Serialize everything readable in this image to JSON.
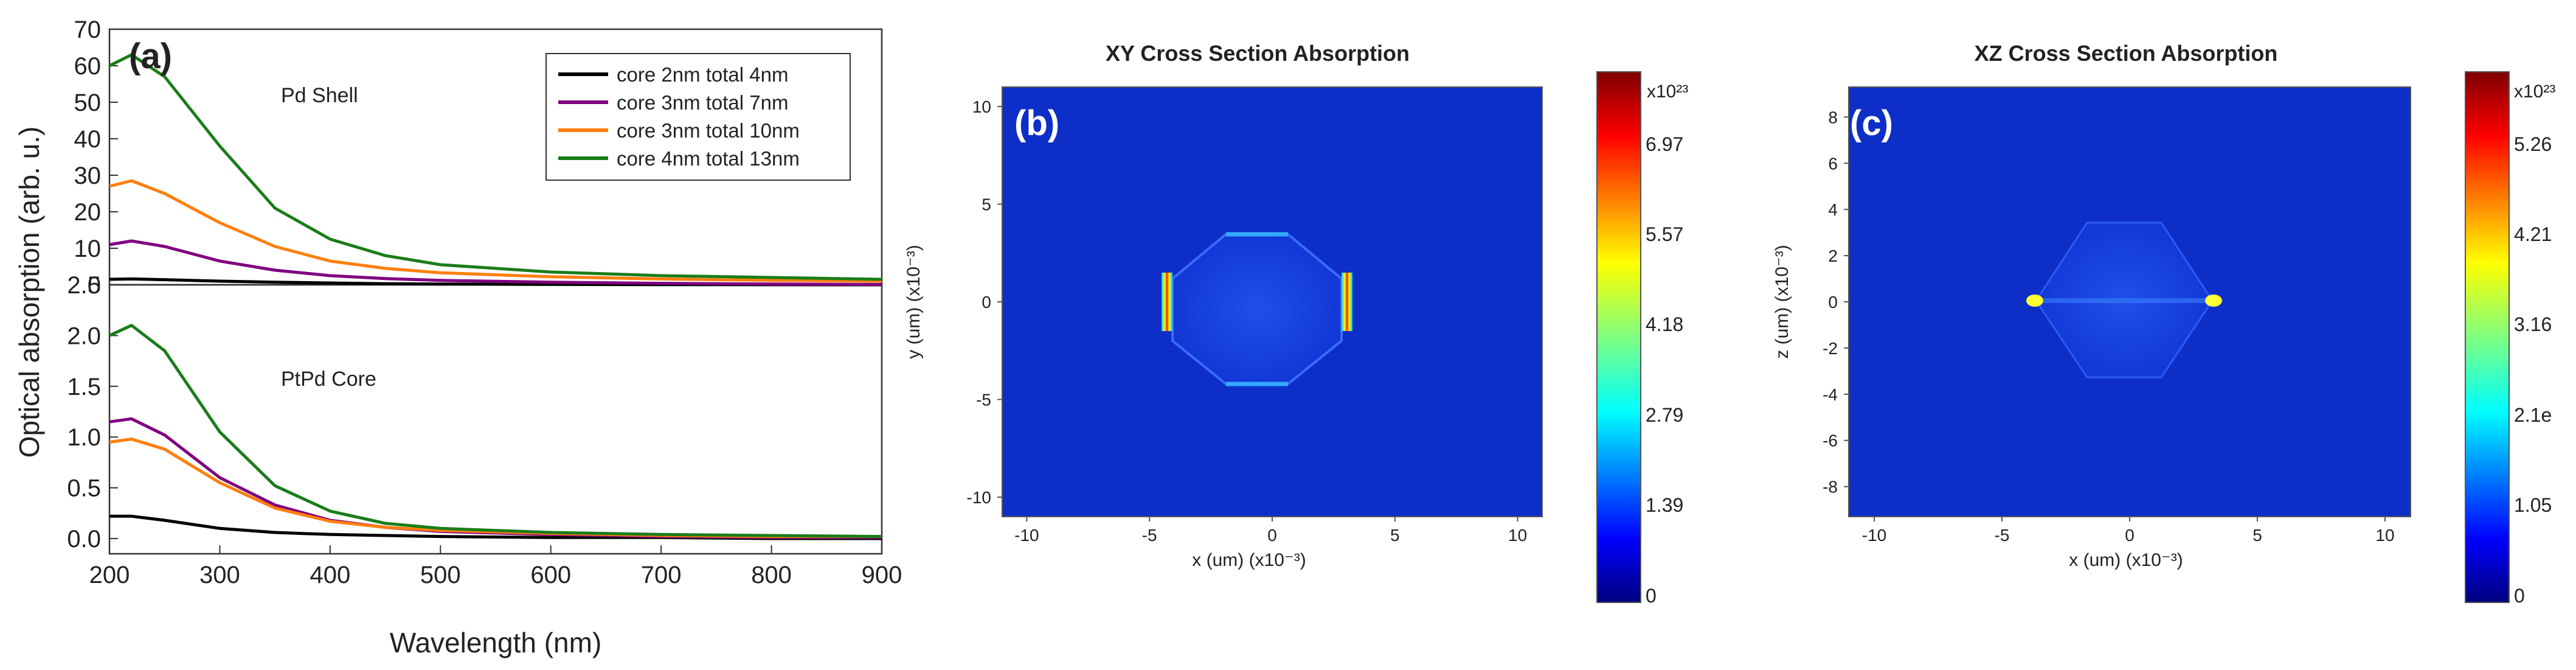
{
  "panel_a": {
    "label": "(a)",
    "xlabel": "Wavelength (nm)",
    "ylabel": "Optical absorption (arb. u.)",
    "x_ticks": [
      200,
      300,
      400,
      500,
      600,
      700,
      800,
      900
    ],
    "legend": [
      "core 2nm total 4nm",
      "core 3nm total 7nm",
      "core 3nm total 10nm",
      "core 4nm total 13nm"
    ],
    "colors": [
      "#000000",
      "#800080",
      "#ff7f0e",
      "#1a7d1a"
    ]
  },
  "panel_b": {
    "label": "(b)",
    "title": "XY Cross Section Absorption",
    "xlabel": "x (um) (x10⁻³)",
    "ylabel": "y (um) (x10⁻³)",
    "x_ticks": [
      -10,
      -5,
      0,
      5,
      10
    ],
    "y_ticks": [
      10,
      5,
      0,
      -5,
      -10
    ],
    "colorbar_exponent": "x10²³",
    "colorbar_ticks": [
      "6.97",
      "5.57",
      "4.18",
      "2.79",
      "1.39",
      "0"
    ]
  },
  "panel_c": {
    "label": "(c)",
    "title": "XZ Cross Section Absorption",
    "xlabel": "x (um) (x10⁻³)",
    "ylabel": "z (um) (x10⁻³)",
    "x_ticks": [
      -10,
      -5,
      0,
      5,
      10
    ],
    "y_ticks": [
      8,
      6,
      4,
      2,
      0,
      -2,
      -4,
      -6,
      -8
    ],
    "colorbar_exponent": "x10²³",
    "colorbar_ticks": [
      "5.26",
      "4.21",
      "3.16",
      "2.1e",
      "1.05",
      "0"
    ]
  },
  "chart_data": [
    {
      "type": "line",
      "title": "Pd Shell",
      "xlabel": "Wavelength (nm)",
      "ylabel": "Optical absorption (arb. u.)",
      "xlim": [
        200,
        900
      ],
      "ylim": [
        0,
        70
      ],
      "y_ticks": [
        0,
        10,
        20,
        30,
        40,
        50,
        60,
        70
      ],
      "x": [
        200,
        220,
        250,
        300,
        350,
        400,
        450,
        500,
        600,
        700,
        800,
        900
      ],
      "series": [
        {
          "name": "core 2nm total 4nm",
          "values": [
            1.5,
            1.6,
            1.4,
            1.0,
            0.7,
            0.5,
            0.3,
            0.2,
            0.1,
            0.05,
            0.02,
            0.0
          ]
        },
        {
          "name": "core 3nm total 7nm",
          "values": [
            11,
            12,
            10.5,
            6.5,
            4,
            2.5,
            1.7,
            1.2,
            0.7,
            0.4,
            0.2,
            0.1
          ]
        },
        {
          "name": "core 3nm total 10nm",
          "values": [
            27,
            28.5,
            25,
            17,
            10.5,
            6.5,
            4.5,
            3.3,
            2.2,
            1.6,
            1.2,
            1.0
          ]
        },
        {
          "name": "core 4nm total 13nm",
          "values": [
            60,
            63,
            57,
            38,
            21,
            12.5,
            8,
            5.5,
            3.5,
            2.5,
            2.0,
            1.5
          ]
        }
      ]
    },
    {
      "type": "line",
      "title": "PtPd Core",
      "xlabel": "Wavelength (nm)",
      "ylabel": "Optical absorption (arb. u.)",
      "xlim": [
        200,
        900
      ],
      "ylim": [
        -0.15,
        2.5
      ],
      "y_ticks": [
        0.0,
        0.5,
        1.0,
        1.5,
        2.0,
        2.5
      ],
      "x": [
        200,
        220,
        250,
        300,
        350,
        400,
        450,
        500,
        600,
        700,
        800,
        900
      ],
      "series": [
        {
          "name": "core 2nm total 4nm",
          "values": [
            0.22,
            0.22,
            0.18,
            0.1,
            0.06,
            0.04,
            0.03,
            0.02,
            0.01,
            0.01,
            0.0,
            0.0
          ]
        },
        {
          "name": "core 3nm total 7nm",
          "values": [
            1.15,
            1.18,
            1.02,
            0.6,
            0.33,
            0.18,
            0.11,
            0.07,
            0.04,
            0.02,
            0.01,
            0.01
          ]
        },
        {
          "name": "core 3nm total 10nm",
          "values": [
            0.95,
            0.98,
            0.88,
            0.55,
            0.3,
            0.17,
            0.11,
            0.08,
            0.05,
            0.03,
            0.02,
            0.02
          ]
        },
        {
          "name": "core 4nm total 13nm",
          "values": [
            2.0,
            2.1,
            1.85,
            1.05,
            0.52,
            0.27,
            0.15,
            0.1,
            0.06,
            0.04,
            0.03,
            0.02
          ]
        }
      ]
    }
  ]
}
